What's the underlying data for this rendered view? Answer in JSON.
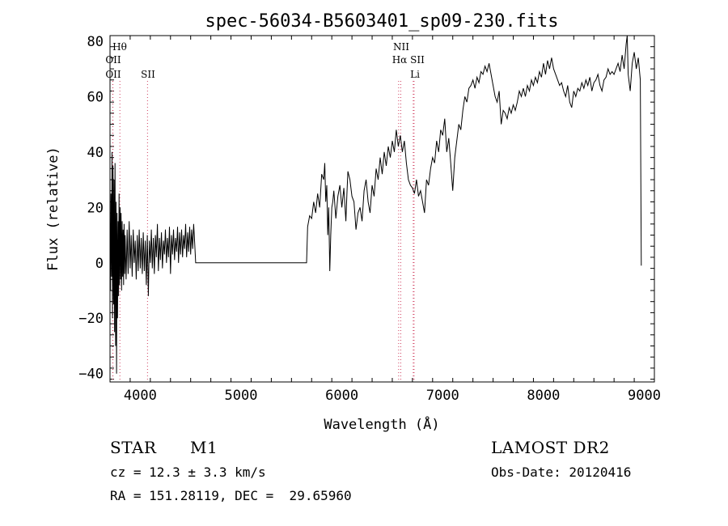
{
  "chart_data": {
    "type": "line",
    "title": "spec-56034-B5603401_sp09-230.fits",
    "xlabel": "Wavelength (Å)",
    "ylabel": "Flux (relative)",
    "xlim": [
      3700,
      9100
    ],
    "ylim": [
      -43,
      82
    ],
    "xticks": [
      4000,
      5000,
      6000,
      7000,
      8000,
      9000
    ],
    "yticks": [
      -40,
      -20,
      0,
      20,
      40,
      60,
      80
    ],
    "grid": false,
    "series": [
      {
        "points": [
          [
            3700,
            12
          ],
          [
            3705,
            -10
          ],
          [
            3710,
            25
          ],
          [
            3715,
            -5
          ],
          [
            3720,
            40
          ],
          [
            3725,
            -20
          ],
          [
            3730,
            35
          ],
          [
            3735,
            -15
          ],
          [
            3740,
            30
          ],
          [
            3745,
            -25
          ],
          [
            3750,
            36
          ],
          [
            3755,
            -30
          ],
          [
            3760,
            22
          ],
          [
            3765,
            -40
          ],
          [
            3770,
            18
          ],
          [
            3775,
            -20
          ],
          [
            3780,
            15
          ],
          [
            3785,
            -12
          ],
          [
            3790,
            25
          ],
          [
            3795,
            -8
          ],
          [
            3800,
            20
          ],
          [
            3805,
            -6
          ],
          [
            3810,
            18
          ],
          [
            3815,
            -10
          ],
          [
            3820,
            15
          ],
          [
            3825,
            -5
          ],
          [
            3830,
            12
          ],
          [
            3835,
            -8
          ],
          [
            3840,
            14
          ],
          [
            3845,
            -4
          ],
          [
            3850,
            10
          ],
          [
            3860,
            -6
          ],
          [
            3870,
            12
          ],
          [
            3880,
            -4
          ],
          [
            3890,
            15
          ],
          [
            3900,
            -2
          ],
          [
            3910,
            10
          ],
          [
            3920,
            -5
          ],
          [
            3930,
            12
          ],
          [
            3940,
            0
          ],
          [
            3950,
            8
          ],
          [
            3960,
            -6
          ],
          [
            3970,
            10
          ],
          [
            3980,
            -3
          ],
          [
            3990,
            12
          ],
          [
            4000,
            -2
          ],
          [
            4010,
            9
          ],
          [
            4020,
            -4
          ],
          [
            4030,
            11
          ],
          [
            4040,
            -3
          ],
          [
            4050,
            8
          ],
          [
            4060,
            -8
          ],
          [
            4070,
            10
          ],
          [
            4080,
            -12
          ],
          [
            4090,
            8
          ],
          [
            4100,
            0
          ],
          [
            4110,
            12
          ],
          [
            4120,
            -2
          ],
          [
            4130,
            9
          ],
          [
            4140,
            -4
          ],
          [
            4150,
            10
          ],
          [
            4160,
            2
          ],
          [
            4170,
            14
          ],
          [
            4180,
            -3
          ],
          [
            4190,
            9
          ],
          [
            4200,
            1
          ],
          [
            4210,
            11
          ],
          [
            4220,
            -2
          ],
          [
            4230,
            8
          ],
          [
            4240,
            3
          ],
          [
            4250,
            12
          ],
          [
            4260,
            0
          ],
          [
            4270,
            9
          ],
          [
            4280,
            2
          ],
          [
            4290,
            13
          ],
          [
            4300,
            -4
          ],
          [
            4310,
            10
          ],
          [
            4320,
            3
          ],
          [
            4330,
            12
          ],
          [
            4340,
            1
          ],
          [
            4350,
            9
          ],
          [
            4360,
            4
          ],
          [
            4370,
            13
          ],
          [
            4380,
            0
          ],
          [
            4390,
            11
          ],
          [
            4400,
            3
          ],
          [
            4410,
            12
          ],
          [
            4420,
            2
          ],
          [
            4430,
            10
          ],
          [
            4440,
            5
          ],
          [
            4450,
            14
          ],
          [
            4460,
            2
          ],
          [
            4470,
            11
          ],
          [
            4480,
            4
          ],
          [
            4490,
            13
          ],
          [
            4500,
            3
          ],
          [
            4510,
            12
          ],
          [
            4520,
            5
          ],
          [
            4530,
            14
          ],
          [
            4540,
            7
          ],
          [
            4550,
            0
          ],
          [
            5650,
            0
          ],
          [
            5660,
            13
          ],
          [
            5680,
            17
          ],
          [
            5700,
            16
          ],
          [
            5720,
            22
          ],
          [
            5740,
            18
          ],
          [
            5760,
            25
          ],
          [
            5780,
            20
          ],
          [
            5800,
            32
          ],
          [
            5820,
            30
          ],
          [
            5830,
            36
          ],
          [
            5840,
            22
          ],
          [
            5850,
            28
          ],
          [
            5860,
            10
          ],
          [
            5870,
            20
          ],
          [
            5880,
            -3
          ],
          [
            5890,
            10
          ],
          [
            5900,
            20
          ],
          [
            5910,
            22
          ],
          [
            5920,
            26
          ],
          [
            5940,
            16
          ],
          [
            5960,
            24
          ],
          [
            5980,
            28
          ],
          [
            6000,
            20
          ],
          [
            6020,
            27
          ],
          [
            6040,
            15
          ],
          [
            6050,
            25
          ],
          [
            6060,
            33
          ],
          [
            6080,
            30
          ],
          [
            6100,
            24
          ],
          [
            6120,
            22
          ],
          [
            6140,
            12
          ],
          [
            6160,
            18
          ],
          [
            6180,
            20
          ],
          [
            6200,
            15
          ],
          [
            6220,
            26
          ],
          [
            6240,
            30
          ],
          [
            6260,
            22
          ],
          [
            6280,
            18
          ],
          [
            6300,
            28
          ],
          [
            6320,
            24
          ],
          [
            6340,
            34
          ],
          [
            6360,
            30
          ],
          [
            6380,
            38
          ],
          [
            6400,
            32
          ],
          [
            6420,
            40
          ],
          [
            6440,
            35
          ],
          [
            6460,
            42
          ],
          [
            6480,
            38
          ],
          [
            6500,
            44
          ],
          [
            6520,
            40
          ],
          [
            6540,
            48
          ],
          [
            6560,
            42
          ],
          [
            6580,
            46
          ],
          [
            6600,
            40
          ],
          [
            6620,
            44
          ],
          [
            6640,
            36
          ],
          [
            6660,
            30
          ],
          [
            6680,
            28
          ],
          [
            6700,
            27
          ],
          [
            6720,
            25
          ],
          [
            6740,
            30
          ],
          [
            6760,
            24
          ],
          [
            6780,
            26
          ],
          [
            6800,
            22
          ],
          [
            6820,
            18
          ],
          [
            6840,
            30
          ],
          [
            6860,
            28
          ],
          [
            6880,
            34
          ],
          [
            6900,
            38
          ],
          [
            6920,
            36
          ],
          [
            6940,
            44
          ],
          [
            6960,
            40
          ],
          [
            6980,
            48
          ],
          [
            7000,
            46
          ],
          [
            7020,
            52
          ],
          [
            7040,
            40
          ],
          [
            7060,
            45
          ],
          [
            7080,
            36
          ],
          [
            7100,
            26
          ],
          [
            7120,
            38
          ],
          [
            7140,
            44
          ],
          [
            7160,
            50
          ],
          [
            7180,
            48
          ],
          [
            7200,
            55
          ],
          [
            7220,
            60
          ],
          [
            7240,
            58
          ],
          [
            7260,
            63
          ],
          [
            7280,
            64
          ],
          [
            7300,
            66
          ],
          [
            7320,
            63
          ],
          [
            7340,
            67
          ],
          [
            7360,
            65
          ],
          [
            7380,
            69
          ],
          [
            7400,
            68
          ],
          [
            7420,
            71
          ],
          [
            7440,
            69
          ],
          [
            7460,
            72
          ],
          [
            7480,
            68
          ],
          [
            7500,
            64
          ],
          [
            7520,
            60
          ],
          [
            7540,
            58
          ],
          [
            7560,
            62
          ],
          [
            7580,
            50
          ],
          [
            7600,
            55
          ],
          [
            7620,
            54
          ],
          [
            7640,
            52
          ],
          [
            7660,
            56
          ],
          [
            7680,
            54
          ],
          [
            7700,
            57
          ],
          [
            7720,
            55
          ],
          [
            7740,
            58
          ],
          [
            7760,
            62
          ],
          [
            7780,
            60
          ],
          [
            7800,
            63
          ],
          [
            7820,
            60
          ],
          [
            7840,
            64
          ],
          [
            7860,
            62
          ],
          [
            7880,
            66
          ],
          [
            7900,
            64
          ],
          [
            7920,
            67
          ],
          [
            7940,
            65
          ],
          [
            7960,
            69
          ],
          [
            7980,
            67
          ],
          [
            8000,
            72
          ],
          [
            8020,
            68
          ],
          [
            8040,
            73
          ],
          [
            8060,
            70
          ],
          [
            8080,
            74
          ],
          [
            8100,
            70
          ],
          [
            8120,
            68
          ],
          [
            8140,
            66
          ],
          [
            8160,
            64
          ],
          [
            8180,
            65
          ],
          [
            8200,
            62
          ],
          [
            8220,
            60
          ],
          [
            8240,
            64
          ],
          [
            8260,
            58
          ],
          [
            8280,
            56
          ],
          [
            8300,
            62
          ],
          [
            8320,
            60
          ],
          [
            8340,
            63
          ],
          [
            8360,
            62
          ],
          [
            8380,
            65
          ],
          [
            8400,
            63
          ],
          [
            8420,
            66
          ],
          [
            8440,
            64
          ],
          [
            8460,
            67
          ],
          [
            8480,
            62
          ],
          [
            8500,
            65
          ],
          [
            8520,
            66
          ],
          [
            8540,
            68
          ],
          [
            8560,
            64
          ],
          [
            8580,
            62
          ],
          [
            8600,
            66
          ],
          [
            8620,
            67
          ],
          [
            8640,
            70
          ],
          [
            8660,
            68
          ],
          [
            8680,
            69
          ],
          [
            8700,
            68
          ],
          [
            8720,
            70
          ],
          [
            8740,
            72
          ],
          [
            8760,
            69
          ],
          [
            8780,
            75
          ],
          [
            8800,
            70
          ],
          [
            8820,
            79
          ],
          [
            8830,
            84
          ],
          [
            8840,
            68
          ],
          [
            8860,
            62
          ],
          [
            8880,
            72
          ],
          [
            8900,
            76
          ],
          [
            8920,
            70
          ],
          [
            8940,
            74
          ],
          [
            8960,
            66
          ],
          [
            8970,
            -1
          ]
        ]
      }
    ],
    "spectral_lines": [
      {
        "label": "Hθ",
        "wavelength": 3798
      },
      {
        "label": "OII",
        "wavelength": 3727
      },
      {
        "label": "OII",
        "wavelength": 3729
      },
      {
        "label": "SII",
        "wavelength": 4072
      },
      {
        "label": "NII",
        "wavelength": 6584
      },
      {
        "label": "Hα",
        "wavelength": 6563
      },
      {
        "label": "SII",
        "wavelength": 6716
      },
      {
        "label": "Li",
        "wavelength": 6708
      }
    ]
  },
  "info": {
    "object_class": "STAR",
    "subclass": "M1",
    "survey": "LAMOST DR2",
    "redshift": "cz = 12.3 ± 3.3 km/s",
    "obs_date": "Obs-Date: 20120416",
    "coords": "RA = 151.28119, DEC =  29.65960"
  },
  "colors": {
    "line": "#000000",
    "marker": "#d04060"
  }
}
